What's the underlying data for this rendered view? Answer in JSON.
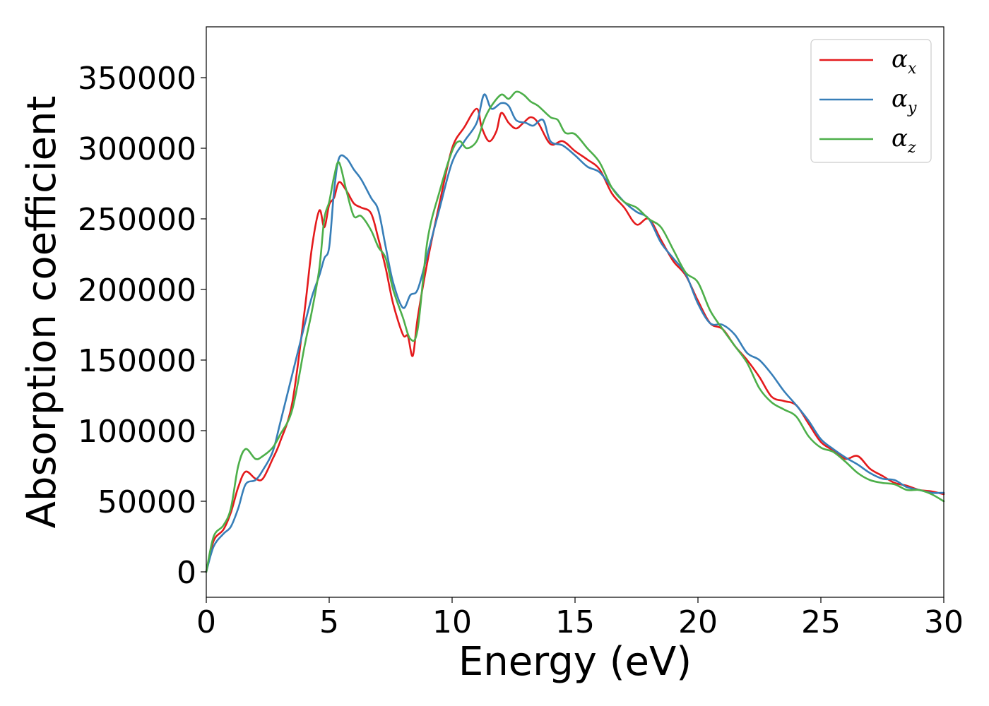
{
  "chart_data": {
    "type": "line",
    "xlabel": "Energy (eV)",
    "ylabel": "Absorption coefficient",
    "xlim": [
      0,
      30
    ],
    "ylim": [
      -18000,
      386000
    ],
    "xticks": [
      "0",
      "5",
      "10",
      "15",
      "20",
      "25",
      "30"
    ],
    "yticks": [
      "0",
      "50000",
      "100000",
      "150000",
      "200000",
      "250000",
      "300000",
      "350000"
    ],
    "grid": false,
    "legend_position": "top-right",
    "series": [
      {
        "name": "α",
        "subscript": "x",
        "color": "#e41a1c",
        "x": [
          0,
          0.3,
          0.7,
          1.0,
          1.3,
          1.6,
          2.0,
          2.3,
          2.7,
          3.0,
          3.5,
          4.0,
          4.3,
          4.6,
          4.8,
          5.0,
          5.2,
          5.4,
          5.7,
          6.0,
          6.3,
          6.7,
          7.0,
          7.3,
          7.6,
          8.0,
          8.2,
          8.4,
          8.6,
          9.0,
          9.5,
          10.0,
          10.5,
          11.0,
          11.2,
          11.5,
          11.8,
          12.0,
          12.3,
          12.6,
          12.9,
          13.2,
          13.5,
          14.0,
          14.5,
          15.0,
          15.5,
          16.0,
          16.5,
          17.0,
          17.5,
          18.0,
          18.5,
          19.0,
          19.5,
          20.0,
          20.5,
          21.0,
          21.5,
          22.0,
          22.5,
          23.0,
          23.5,
          24.0,
          24.5,
          25.0,
          25.5,
          26.0,
          26.5,
          27.0,
          27.5,
          28.0,
          28.5,
          29.0,
          29.5,
          30.0
        ],
        "values": [
          0,
          22000,
          30000,
          42000,
          60000,
          71000,
          66000,
          66000,
          80000,
          92000,
          120000,
          185000,
          230000,
          256000,
          244000,
          260000,
          265000,
          276000,
          270000,
          261000,
          258000,
          254000,
          236000,
          215000,
          190000,
          168000,
          167000,
          153000,
          180000,
          220000,
          262000,
          300000,
          315000,
          328000,
          315000,
          305000,
          312000,
          325000,
          318000,
          314000,
          318000,
          322000,
          318000,
          303000,
          305000,
          298000,
          292000,
          285000,
          268000,
          258000,
          246000,
          250000,
          235000,
          220000,
          210000,
          192000,
          176000,
          172000,
          160000,
          150000,
          138000,
          124000,
          121000,
          118000,
          105000,
          92000,
          86000,
          80000,
          82000,
          73000,
          68000,
          63000,
          61000,
          58000,
          57000,
          55000
        ]
      },
      {
        "name": "α",
        "subscript": "y",
        "color": "#377eb8",
        "x": [
          0,
          0.3,
          0.7,
          1.0,
          1.3,
          1.6,
          2.0,
          2.3,
          2.7,
          3.0,
          3.5,
          4.0,
          4.3,
          4.6,
          4.8,
          5.0,
          5.2,
          5.4,
          5.7,
          6.0,
          6.3,
          6.7,
          7.0,
          7.3,
          7.6,
          8.0,
          8.3,
          8.6,
          9.0,
          9.5,
          10.0,
          10.5,
          11.0,
          11.3,
          11.6,
          12.0,
          12.3,
          12.6,
          13.0,
          13.3,
          13.7,
          14.0,
          14.5,
          15.0,
          15.5,
          16.0,
          16.5,
          17.0,
          17.5,
          18.0,
          18.5,
          19.0,
          19.5,
          20.0,
          20.5,
          21.0,
          21.5,
          22.0,
          22.5,
          23.0,
          23.5,
          24.0,
          24.5,
          25.0,
          25.5,
          26.0,
          26.5,
          27.0,
          27.5,
          28.0,
          28.5,
          29.0,
          29.5,
          30.0
        ],
        "values": [
          0,
          18000,
          27000,
          32000,
          45000,
          62000,
          65000,
          72000,
          85000,
          105000,
          140000,
          175000,
          195000,
          210000,
          222000,
          230000,
          270000,
          293000,
          293000,
          285000,
          278000,
          265000,
          256000,
          230000,
          205000,
          187000,
          196000,
          200000,
          225000,
          258000,
          290000,
          305000,
          318000,
          338000,
          328000,
          332000,
          330000,
          320000,
          318000,
          316000,
          320000,
          305000,
          302000,
          295000,
          287000,
          283000,
          272000,
          262000,
          255000,
          250000,
          233000,
          222000,
          211000,
          190000,
          176000,
          175000,
          168000,
          155000,
          150000,
          140000,
          128000,
          118000,
          107000,
          94000,
          87000,
          81000,
          76000,
          70000,
          66000,
          65000,
          60000,
          58000,
          56000,
          56000
        ]
      },
      {
        "name": "α",
        "subscript": "z",
        "color": "#4daf4a",
        "x": [
          0,
          0.3,
          0.7,
          1.0,
          1.3,
          1.6,
          2.0,
          2.3,
          2.7,
          3.0,
          3.5,
          4.0,
          4.3,
          4.6,
          4.8,
          5.0,
          5.2,
          5.4,
          5.7,
          6.0,
          6.3,
          6.7,
          7.0,
          7.3,
          7.6,
          8.0,
          8.3,
          8.6,
          9.0,
          9.5,
          10.0,
          10.3,
          10.6,
          11.0,
          11.3,
          11.6,
          12.0,
          12.3,
          12.6,
          12.9,
          13.2,
          13.5,
          14.0,
          14.3,
          14.6,
          15.0,
          15.5,
          16.0,
          16.5,
          17.0,
          17.5,
          18.0,
          18.5,
          19.0,
          19.5,
          20.0,
          20.5,
          21.0,
          21.5,
          22.0,
          22.5,
          23.0,
          23.5,
          24.0,
          24.5,
          25.0,
          25.5,
          26.0,
          26.5,
          27.0,
          27.5,
          28.0,
          28.5,
          29.0,
          29.5,
          30.0
        ],
        "values": [
          0,
          25000,
          33000,
          45000,
          75000,
          87000,
          80000,
          82000,
          88000,
          97000,
          115000,
          160000,
          185000,
          215000,
          250000,
          262000,
          280000,
          290000,
          270000,
          252000,
          252000,
          242000,
          230000,
          222000,
          200000,
          180000,
          165000,
          172000,
          235000,
          270000,
          298000,
          305000,
          300000,
          305000,
          320000,
          330000,
          338000,
          335000,
          340000,
          338000,
          333000,
          330000,
          322000,
          320000,
          311000,
          310000,
          300000,
          290000,
          272000,
          262000,
          258000,
          250000,
          244000,
          228000,
          212000,
          205000,
          185000,
          172000,
          160000,
          148000,
          130000,
          120000,
          115000,
          110000,
          96000,
          88000,
          85000,
          78000,
          70000,
          65000,
          63000,
          62000,
          58000,
          58000,
          55000,
          50000
        ]
      }
    ]
  }
}
